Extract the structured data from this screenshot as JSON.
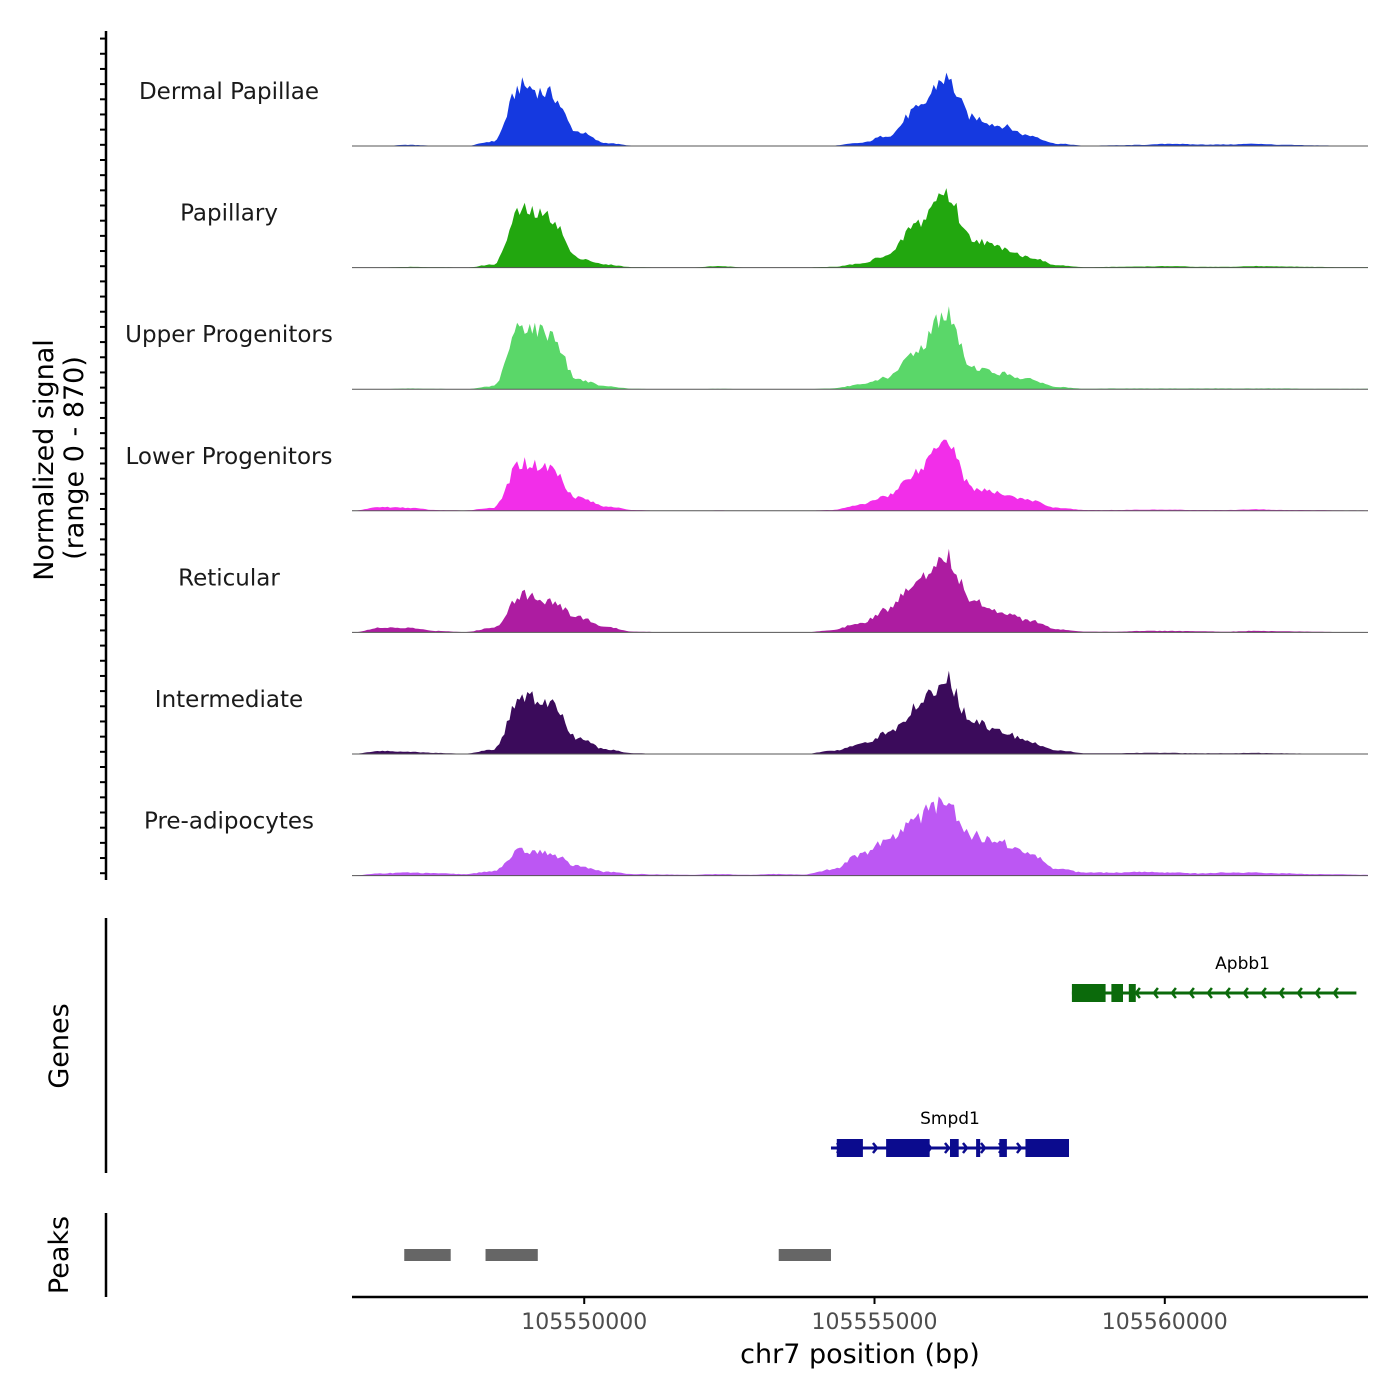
{
  "chart_data": {
    "type": "area",
    "description": "Genome coverage browser tracks",
    "y_axis": {
      "title_line1": "Normalized signal",
      "title_line2": "(range 0 - 870)",
      "range": [
        0,
        870
      ]
    },
    "x_axis": {
      "title": "chr7 position (bp)",
      "range": [
        105546000,
        105563500
      ],
      "ticks": [
        105550000,
        105555000,
        105560000
      ],
      "tick_labels": [
        "105550000",
        "105555000",
        "105560000"
      ]
    },
    "peak_centers": [
      105548200,
      105549150,
      105549450,
      105554400,
      105554700
    ],
    "tracks": [
      {
        "name": "Dermal Papillae",
        "color": "#1539e0",
        "values": [
          0,
          0,
          15,
          5,
          0,
          60,
          800,
          700,
          190,
          40,
          5,
          0,
          0,
          5,
          0,
          0,
          0,
          5,
          40,
          140,
          480,
          900,
          380,
          270,
          140,
          30,
          5,
          10,
          15,
          30,
          20,
          20,
          30,
          15,
          10,
          5,
          5
        ]
      },
      {
        "name": "Papillary",
        "color": "#22a70f",
        "values": [
          0,
          0,
          10,
          5,
          0,
          40,
          760,
          680,
          130,
          40,
          5,
          0,
          0,
          20,
          0,
          0,
          0,
          10,
          50,
          170,
          580,
          1000,
          380,
          270,
          140,
          30,
          5,
          10,
          15,
          20,
          10,
          10,
          20,
          15,
          10,
          5,
          5
        ]
      },
      {
        "name": "Upper Progenitors",
        "color": "#5ad769",
        "values": [
          0,
          0,
          10,
          5,
          0,
          40,
          850,
          750,
          130,
          40,
          5,
          0,
          0,
          5,
          0,
          0,
          0,
          10,
          60,
          160,
          510,
          1010,
          290,
          210,
          130,
          30,
          5,
          10,
          10,
          10,
          10,
          10,
          10,
          10,
          5,
          5,
          5
        ]
      },
      {
        "name": "Lower Progenitors",
        "color": "#f22ee9",
        "values": [
          0,
          50,
          40,
          10,
          5,
          40,
          640,
          580,
          180,
          60,
          10,
          0,
          0,
          5,
          0,
          0,
          0,
          10,
          80,
          210,
          520,
          1000,
          300,
          230,
          140,
          40,
          10,
          10,
          15,
          15,
          10,
          10,
          20,
          10,
          10,
          5,
          5
        ]
      },
      {
        "name": "Reticular",
        "color": "#ad1ca1",
        "values": [
          0,
          60,
          60,
          20,
          5,
          60,
          510,
          420,
          210,
          70,
          10,
          5,
          0,
          5,
          0,
          0,
          0,
          30,
          130,
          310,
          690,
          1040,
          420,
          280,
          160,
          40,
          10,
          10,
          20,
          20,
          15,
          10,
          20,
          15,
          10,
          5,
          5
        ]
      },
      {
        "name": "Intermediate",
        "color": "#3b0b5b",
        "values": [
          0,
          40,
          30,
          15,
          5,
          60,
          760,
          680,
          210,
          60,
          10,
          0,
          0,
          5,
          0,
          0,
          0,
          40,
          130,
          280,
          600,
          1000,
          430,
          300,
          160,
          50,
          10,
          10,
          15,
          15,
          10,
          10,
          15,
          10,
          5,
          5,
          5
        ]
      },
      {
        "name": "Pre-adipocytes",
        "color": "#bc57f3",
        "values": [
          0,
          30,
          40,
          30,
          20,
          60,
          330,
          300,
          130,
          50,
          20,
          15,
          10,
          20,
          10,
          20,
          15,
          80,
          270,
          470,
          780,
          1010,
          540,
          440,
          290,
          90,
          40,
          40,
          50,
          40,
          30,
          40,
          40,
          30,
          20,
          15,
          10
        ]
      }
    ],
    "genes_panel": {
      "title": "Genes",
      "genes": [
        {
          "name": "Apbb1",
          "strand": "-",
          "start": 105558400,
          "end": 105563300,
          "color": "#0b6a0b",
          "exons": [
            [
              105558400,
              105558980
            ],
            [
              105559080,
              105559280
            ],
            [
              105559380,
              105559500
            ]
          ]
        },
        {
          "name": "Smpd1",
          "strand": "+",
          "start": 105554250,
          "end": 105558350,
          "color": "#0b0b8e",
          "exons": [
            [
              105554350,
              105554800
            ],
            [
              105555200,
              105555950
            ],
            [
              105556300,
              105556450
            ],
            [
              105556750,
              105556820
            ],
            [
              105557150,
              105557280
            ],
            [
              105557600,
              105558350
            ]
          ]
        }
      ]
    },
    "peaks_panel": {
      "title": "Peaks",
      "color": "#666666",
      "peaks": [
        [
          105546900,
          105547700
        ],
        [
          105548300,
          105549200
        ],
        [
          105553350,
          105554250
        ]
      ]
    }
  }
}
